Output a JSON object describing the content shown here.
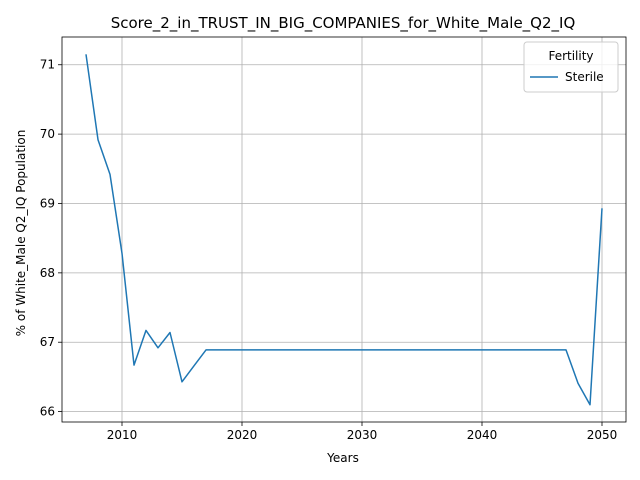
{
  "chart_data": {
    "type": "line",
    "title": "Score_2_in_TRUST_IN_BIG_COMPANIES_for_White_Male_Q2_IQ",
    "xlabel": "Years",
    "ylabel": "% of White_Male Q2_IQ Population",
    "xlim": [
      2005,
      2052
    ],
    "ylim": [
      65.85,
      71.4
    ],
    "xticks": [
      2010,
      2020,
      2030,
      2040,
      2050
    ],
    "yticks": [
      66,
      67,
      68,
      69,
      70,
      71
    ],
    "grid": true,
    "legend": {
      "title": "Fertility",
      "position": "top-right"
    },
    "series": [
      {
        "name": "Sterile",
        "color": "#1f77b4",
        "x": [
          2007,
          2008,
          2009,
          2010,
          2011,
          2012,
          2013,
          2014,
          2015,
          2016,
          2017,
          2018,
          2019,
          2020,
          2021,
          2022,
          2023,
          2024,
          2025,
          2026,
          2027,
          2028,
          2029,
          2030,
          2031,
          2032,
          2033,
          2034,
          2035,
          2036,
          2037,
          2038,
          2039,
          2040,
          2041,
          2042,
          2043,
          2044,
          2045,
          2046,
          2047,
          2048,
          2049,
          2050
        ],
        "values": [
          71.15,
          69.92,
          69.42,
          68.28,
          66.67,
          67.17,
          66.92,
          67.14,
          66.43,
          66.66,
          66.89,
          66.89,
          66.89,
          66.89,
          66.89,
          66.89,
          66.89,
          66.89,
          66.89,
          66.89,
          66.89,
          66.89,
          66.89,
          66.89,
          66.89,
          66.89,
          66.89,
          66.89,
          66.89,
          66.89,
          66.89,
          66.89,
          66.89,
          66.89,
          66.89,
          66.89,
          66.89,
          66.89,
          66.89,
          66.89,
          66.89,
          66.41,
          66.1,
          68.93
        ]
      }
    ]
  }
}
